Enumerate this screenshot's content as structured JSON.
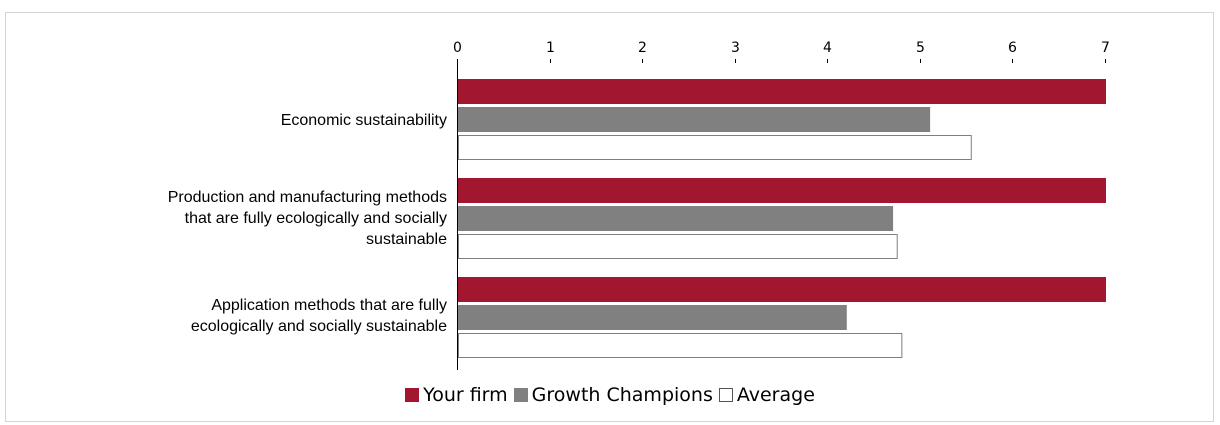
{
  "chart_data": {
    "type": "bar",
    "orientation": "horizontal",
    "categories": [
      "Economic sustainability",
      "Production and manufacturing methods that are fully ecologically and socially sustainable",
      "Application methods that are fully ecologically and socially sustainable"
    ],
    "category_lines": [
      [
        "Economic sustainability"
      ],
      [
        "Production and manufacturing methods",
        "that are fully ecologically and socially",
        "sustainable"
      ],
      [
        "Application methods that are fully",
        "ecologically and socially sustainable"
      ]
    ],
    "series": [
      {
        "name": "Your firm",
        "values": [
          7,
          7,
          7
        ],
        "color": "#a3162f"
      },
      {
        "name": "Growth Champions",
        "values": [
          5.1,
          4.7,
          4.2
        ],
        "color": "#808080"
      },
      {
        "name": "Average",
        "values": [
          5.55,
          4.75,
          4.8
        ],
        "color": "#ffffff"
      }
    ],
    "xlim": [
      0,
      7
    ],
    "xticks": [
      "0",
      "1",
      "2",
      "3",
      "4",
      "5",
      "6",
      "7"
    ],
    "axis_position": "top",
    "legend_position": "bottom",
    "grid": false
  }
}
